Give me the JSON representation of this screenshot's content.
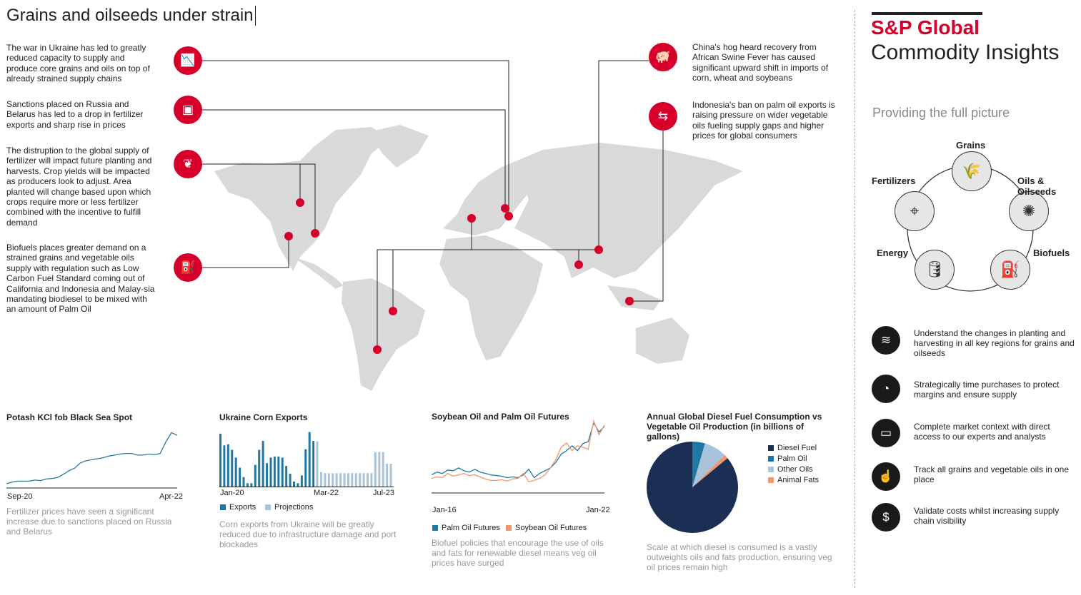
{
  "title": "Grains and oilseeds under strain",
  "left_items": [
    {
      "icon": "bar-chart-down-icon",
      "text": "The war in Ukraine has led to greatly reduced capacity to supply and produce core grains and oils on top of already strained supply chains"
    },
    {
      "icon": "fertilizer-bag-icon",
      "text": "Sanctions placed on Russia and Belarus has led to a drop in fertilizer exports and sharp rise in prices"
    },
    {
      "icon": "crops-icon",
      "text": "The distruption to the global supply of fertilizer will impact future planting and harvests. Crop yields will be impacted as producers look to adjust. Area planted will change based upon which crops require more or less fertilizer combined with the incentive to fulfill demand"
    },
    {
      "icon": "fuel-pump-icon",
      "text": "Biofuels places greater demand on a strained grains and vegetable oils supply with regulation such as Low Carbon Fuel Standard coming out of California and Indonesia and Malay-sia mandating biodiesel to be mixed with an amount of Palm Oil"
    }
  ],
  "right_items": [
    {
      "icon": "pig-icon",
      "text": "China's hog heard recovery from African Swine Fever has caused significant upward shift in imports of corn, wheat and soybeans"
    },
    {
      "icon": "exchange-arrows-icon",
      "text": "Indonesia's ban on palm oil exports is raising pressure on wider vegetable oils fueling supply gaps and higher prices for global consumers"
    }
  ],
  "brand": {
    "name": "S&P Global",
    "sub": "Commodity Insights",
    "tagline": "Providing the full picture",
    "accent": "#d6002a"
  },
  "cycle": [
    {
      "label": "Grains",
      "icon": "wheat-icon"
    },
    {
      "label": "Oils & Oilseeds",
      "icon": "sunflower-icon"
    },
    {
      "label": "Biofuels",
      "icon": "fuel-pump-icon"
    },
    {
      "label": "Energy",
      "icon": "oil-barrel-icon"
    },
    {
      "label": "Fertilizers",
      "icon": "drone-icon"
    }
  ],
  "benefits": [
    {
      "icon": "field-icon",
      "text": "Understand the changes in planting and harvesting in all key regions for grains and oilseeds"
    },
    {
      "icon": "gauge-icon",
      "text": "Strategically time purchases to protect margins and ensure supply"
    },
    {
      "icon": "chat-icon",
      "text": "Complete market context with direct access to our experts and analysts"
    },
    {
      "icon": "touch-icon",
      "text": "Track all grains and vegetable oils in one place"
    },
    {
      "icon": "dollar-search-icon",
      "text": "Validate costs whilst increasing supply chain visibility"
    }
  ],
  "chart_data": [
    {
      "type": "line",
      "title": "Potash KCl fob Black Sea Spot",
      "x_ticks": [
        "Sep-20",
        "Apr-22"
      ],
      "series": [
        {
          "name": "Potash",
          "color": "#2b7a9b",
          "values": [
            0.0,
            0.03,
            0.05,
            0.05,
            0.05,
            0.07,
            0.06,
            0.09,
            0.1,
            0.12,
            0.18,
            0.25,
            0.3,
            0.4,
            0.44,
            0.46,
            0.48,
            0.5,
            0.53,
            0.55,
            0.57,
            0.58,
            0.58,
            0.55,
            0.55,
            0.57,
            0.56,
            0.58,
            0.8,
            0.98,
            0.93
          ]
        }
      ],
      "caption": "Fertilizer prices have seen a significant increase due to sanctions placed on Russia and Belarus"
    },
    {
      "type": "bar",
      "title": "Ukraine Corn Exports",
      "x_ticks": [
        "Jan-20",
        "Mar-22",
        "Jul-23"
      ],
      "series": [
        {
          "name": "Exports",
          "color": "#1f77a4",
          "values": [
            0.95,
            0.74,
            0.76,
            0.66,
            0.52,
            0.34,
            0.17,
            0.06,
            0.06,
            0.39,
            0.66,
            0.82,
            0.42,
            0.52,
            0.54,
            0.54,
            0.52,
            0.37,
            0.23,
            0.09,
            0.06,
            0.2,
            0.67,
            0.98,
            0.82
          ]
        },
        {
          "name": "Projections",
          "color": "#a9c4da",
          "values": [
            0.81,
            0.26,
            0.24,
            0.24,
            0.24,
            0.24,
            0.24,
            0.24,
            0.24,
            0.24,
            0.24,
            0.24,
            0.24,
            0.24,
            0.24,
            0.62,
            0.62,
            0.62,
            0.41,
            0.41
          ]
        }
      ],
      "caption": "Corn exports from Ukraine will be greatly reduced due to infrastructure damage and port blockades"
    },
    {
      "type": "line",
      "title": "Soybean Oil and Palm Oil Futures",
      "x_ticks": [
        "Jan-16",
        "Jan-22"
      ],
      "series": [
        {
          "name": "Palm Oil Futures",
          "color": "#1f77a4",
          "values": [
            0.2,
            0.24,
            0.22,
            0.27,
            0.26,
            0.3,
            0.26,
            0.24,
            0.28,
            0.24,
            0.22,
            0.2,
            0.19,
            0.18,
            0.16,
            0.17,
            0.16,
            0.2,
            0.28,
            0.16,
            0.22,
            0.26,
            0.3,
            0.38,
            0.5,
            0.55,
            0.62,
            0.55,
            0.65,
            0.68,
            0.95,
            0.82,
            0.9
          ]
        },
        {
          "name": "Soybean Oil Futures",
          "color": "#f0966c",
          "values": [
            0.15,
            0.17,
            0.16,
            0.22,
            0.18,
            0.2,
            0.22,
            0.19,
            0.2,
            0.17,
            0.14,
            0.12,
            0.12,
            0.13,
            0.11,
            0.14,
            0.15,
            0.22,
            0.1,
            0.12,
            0.15,
            0.2,
            0.3,
            0.42,
            0.6,
            0.66,
            0.55,
            0.62,
            0.6,
            0.57,
            0.98,
            0.78,
            0.92
          ]
        }
      ],
      "caption": "Biofuel policies that encourage the use of oils and fats for renewable diesel means veg oil prices have surged"
    },
    {
      "type": "pie",
      "title": "Annual Global Diesel Fuel Consumption vs Vegetable Oil Production (in billions of gallons)",
      "slices": [
        {
          "label": "Diesel Fuel",
          "value": 86,
          "color": "#1b2e54"
        },
        {
          "label": "Palm Oil",
          "value": 4.5,
          "color": "#1f77a4"
        },
        {
          "label": "Other Oils",
          "value": 8,
          "color": "#a9c4da"
        },
        {
          "label": "Animal Fats",
          "value": 1.5,
          "color": "#f0966c"
        }
      ],
      "caption": "Scale at which diesel is consumed is a vastly outweights oils and fats production, ensuring veg oil prices remain high"
    }
  ]
}
